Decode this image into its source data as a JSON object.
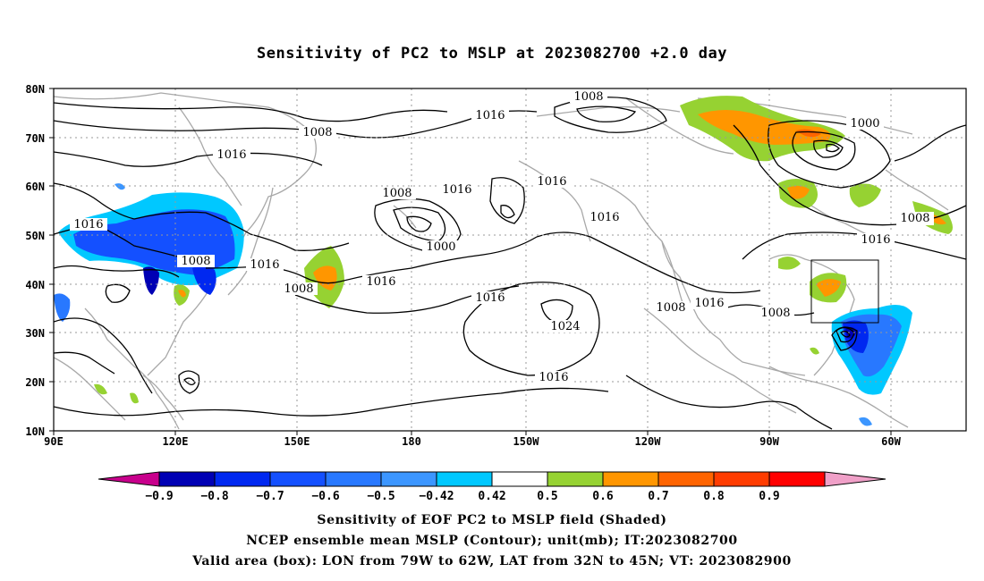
{
  "title": "Sensitivity of PC2 to MSLP at 2023082700 +2.0 day",
  "map": {
    "lat_labels": [
      "80N",
      "70N",
      "60N",
      "50N",
      "40N",
      "30N",
      "20N",
      "10N"
    ],
    "lon_labels": [
      "90E",
      "120E",
      "150E",
      "180",
      "150W",
      "120W",
      "90W",
      "60W"
    ],
    "lon_range": [
      90,
      315
    ],
    "lat_range": [
      10,
      80
    ],
    "valid_box": {
      "lon": [
        281,
        298
      ],
      "lat": [
        32,
        45
      ]
    },
    "contour_labels": [
      "1008",
      "1016",
      "1000",
      "1008",
      "1016",
      "1016",
      "1016",
      "1008",
      "1016",
      "1016",
      "1008",
      "1008",
      "1016",
      "1008",
      "1000",
      "1016",
      "1016",
      "1024",
      "1016",
      "1008",
      "1016",
      "1008",
      "1008",
      "1016"
    ]
  },
  "colorbar": {
    "ticks": [
      "-0.9",
      "-0.8",
      "-0.7",
      "-0.6",
      "-0.5",
      "-0.42",
      "0.42",
      "0.5",
      "0.6",
      "0.7",
      "0.8",
      "0.9"
    ],
    "colors": [
      "#c8008c",
      "#0000b4",
      "#0028f0",
      "#1450ff",
      "#2878ff",
      "#3c96ff",
      "#00c8ff",
      "#ffffff",
      "#96d232",
      "#ff9600",
      "#ff6400",
      "#ff3c00",
      "#ff0000",
      "#f0a0c8"
    ]
  },
  "captions": [
    "Sensitivity of EOF PC2 to MSLP field (Shaded)",
    "NCEP ensemble mean MSLP (Contour); unit(mb); IT:2023082700",
    "Valid area (box): LON from 79W to 62W, LAT from 32N to 45N; VT: 2023082900"
  ]
}
